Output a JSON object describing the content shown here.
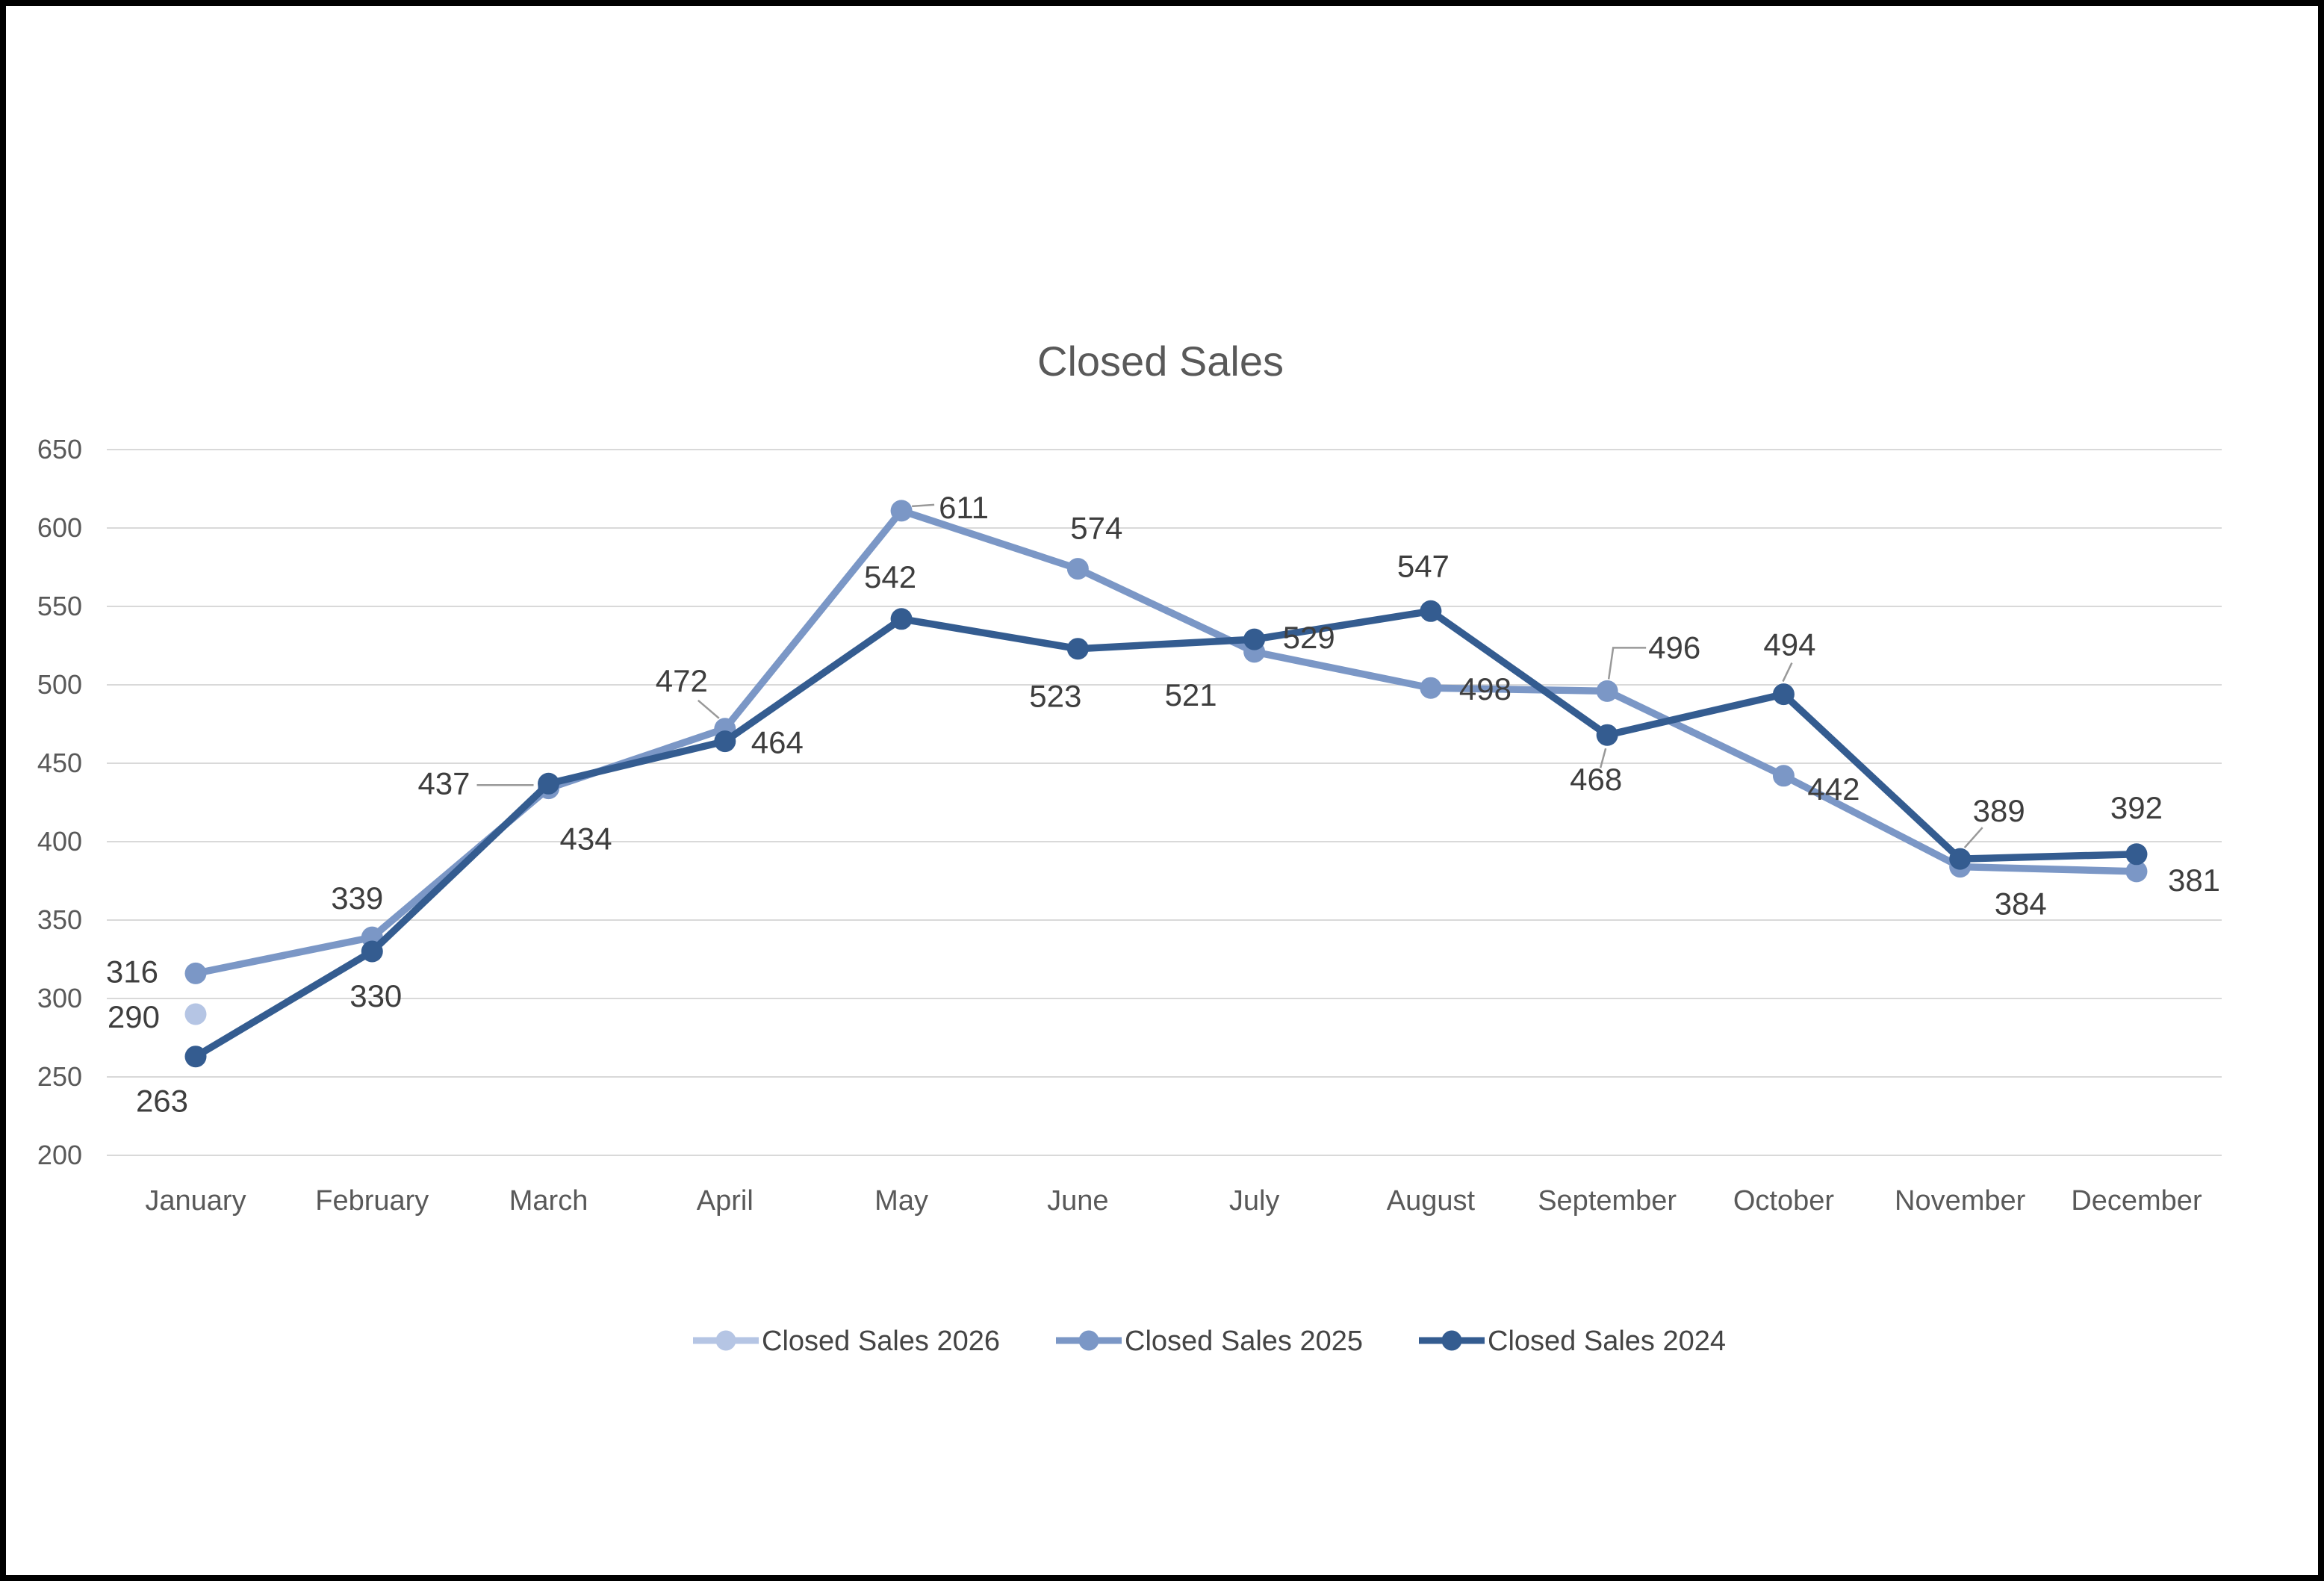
{
  "title": "Closed Sales",
  "chart_data": {
    "type": "line",
    "title": "Closed Sales",
    "categories": [
      "January",
      "February",
      "March",
      "April",
      "May",
      "June",
      "July",
      "August",
      "September",
      "October",
      "November",
      "December"
    ],
    "y_axis": {
      "min": 200,
      "max": 650,
      "step": 50,
      "ticks": [
        650,
        600,
        550,
        500,
        450,
        400,
        350,
        300,
        250,
        200
      ]
    },
    "grid": true,
    "legend_position": "bottom",
    "series": [
      {
        "name": "Closed Sales 2026",
        "color": "#B5C5E4",
        "values": [
          290,
          null,
          null,
          null,
          null,
          null,
          null,
          null,
          null,
          null,
          null,
          null
        ]
      },
      {
        "name": "Closed Sales 2025",
        "color": "#7B97C6",
        "values": [
          316,
          339,
          434,
          472,
          611,
          574,
          521,
          498,
          496,
          442,
          384,
          381
        ]
      },
      {
        "name": "Closed Sales 2024",
        "color": "#345C90",
        "values": [
          263,
          330,
          437,
          464,
          542,
          523,
          529,
          547,
          468,
          494,
          389,
          392
        ]
      }
    ]
  },
  "colors": {
    "grid": "#D9D9D9",
    "axis_text": "#595959",
    "data_label_text": "#3E3E3E",
    "title_text": "#595959",
    "legend_text": "#444444",
    "leader_line": "#999999",
    "frame_border": "#000000"
  }
}
